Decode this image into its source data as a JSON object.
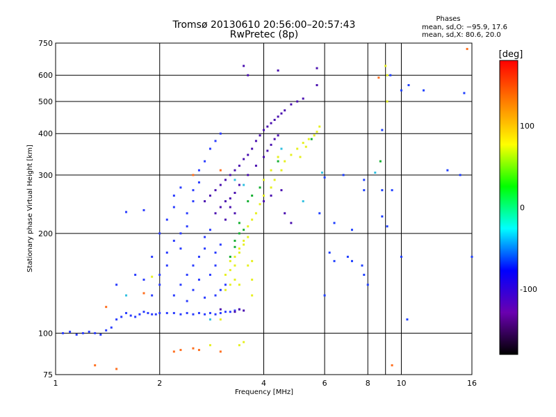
{
  "chart_data": {
    "type": "scatter",
    "title": "Tromsø 20130610 20:56:00–20:57:43",
    "subtitle": "RwPretec (8p)",
    "stats": {
      "heading": "Phases",
      "line1": "mean, sd,O: −95.9, 17.6",
      "line2": "mean, sd,X:  80.6, 20.0"
    },
    "xlabel": "Frequency [MHz]",
    "ylabel": "Stationary phase Virtual Height [km]",
    "x_scale": "log",
    "y_scale": "log",
    "xlim": [
      1,
      16
    ],
    "ylim": [
      75,
      750
    ],
    "x_ticks": [
      1,
      2,
      4,
      6,
      8,
      10,
      16
    ],
    "y_ticks": [
      75,
      100,
      200,
      300,
      400,
      500,
      600,
      750
    ],
    "grid": true,
    "colorbar": {
      "label": "[deg]",
      "range": [
        -180,
        180
      ],
      "ticks": [
        100,
        0,
        -100
      ],
      "colors": [
        "#ff0000",
        "#ff8000",
        "#ffff00",
        "#00ff00",
        "#00ffff",
        "#0000ff",
        "#6a00b0",
        "#000000"
      ]
    },
    "series": [
      {
        "color": "#2a3cff",
        "points": [
          [
            1.05,
            100
          ],
          [
            1.1,
            101
          ],
          [
            1.15,
            99
          ],
          [
            1.2,
            100
          ],
          [
            1.25,
            101
          ],
          [
            1.3,
            100
          ],
          [
            1.35,
            99
          ],
          [
            1.4,
            102
          ],
          [
            1.45,
            104
          ],
          [
            1.5,
            110
          ],
          [
            1.55,
            112
          ],
          [
            1.6,
            115
          ],
          [
            1.65,
            113
          ],
          [
            1.7,
            112
          ],
          [
            1.75,
            114
          ],
          [
            1.8,
            116
          ],
          [
            1.85,
            115
          ],
          [
            1.9,
            114
          ],
          [
            1.95,
            114
          ],
          [
            2.0,
            115
          ],
          [
            2.1,
            115
          ],
          [
            2.2,
            115
          ],
          [
            2.3,
            114
          ],
          [
            2.4,
            115
          ],
          [
            2.5,
            114
          ],
          [
            2.6,
            115
          ],
          [
            2.7,
            114
          ],
          [
            2.8,
            115
          ],
          [
            2.9,
            114
          ],
          [
            3.0,
            115
          ],
          [
            3.1,
            116
          ],
          [
            3.2,
            116
          ],
          [
            3.3,
            117
          ],
          [
            3.4,
            118
          ],
          [
            1.9,
            130
          ],
          [
            2.0,
            140
          ],
          [
            2.0,
            150
          ],
          [
            2.1,
            160
          ],
          [
            2.1,
            175
          ],
          [
            2.2,
            190
          ],
          [
            2.0,
            200
          ],
          [
            2.1,
            220
          ],
          [
            2.2,
            240
          ],
          [
            2.3,
            180
          ],
          [
            2.3,
            200
          ],
          [
            2.4,
            210
          ],
          [
            2.4,
            230
          ],
          [
            2.5,
            250
          ],
          [
            2.5,
            270
          ],
          [
            2.6,
            285
          ],
          [
            2.2,
            130
          ],
          [
            2.3,
            140
          ],
          [
            2.4,
            150
          ],
          [
            2.5,
            160
          ],
          [
            2.6,
            170
          ],
          [
            2.7,
            180
          ],
          [
            2.7,
            195
          ],
          [
            2.8,
            205
          ],
          [
            2.5,
            135
          ],
          [
            2.6,
            145
          ],
          [
            2.8,
            150
          ],
          [
            2.9,
            160
          ],
          [
            2.9,
            175
          ],
          [
            3.0,
            185
          ],
          [
            2.4,
            125
          ],
          [
            2.7,
            128
          ],
          [
            2.9,
            130
          ],
          [
            3.0,
            135
          ],
          [
            3.1,
            140
          ],
          [
            2.6,
            310
          ],
          [
            2.7,
            330
          ],
          [
            2.8,
            360
          ],
          [
            2.9,
            380
          ],
          [
            3.0,
            400
          ],
          [
            2.2,
            260
          ],
          [
            2.3,
            275
          ],
          [
            1.8,
            235
          ],
          [
            1.6,
            232
          ],
          [
            1.5,
            140
          ],
          [
            1.7,
            150
          ],
          [
            1.8,
            145
          ],
          [
            1.9,
            170
          ]
        ]
      },
      {
        "color": "#4a10b0",
        "points": [
          [
            2.7,
            250
          ],
          [
            2.8,
            260
          ],
          [
            2.9,
            270
          ],
          [
            3.0,
            280
          ],
          [
            3.1,
            290
          ],
          [
            3.2,
            300
          ],
          [
            3.3,
            310
          ],
          [
            3.4,
            320
          ],
          [
            3.5,
            335
          ],
          [
            3.6,
            345
          ],
          [
            3.7,
            360
          ],
          [
            3.8,
            380
          ],
          [
            3.9,
            395
          ],
          [
            4.0,
            410
          ],
          [
            4.1,
            420
          ],
          [
            4.2,
            430
          ],
          [
            4.3,
            440
          ],
          [
            4.4,
            450
          ],
          [
            4.5,
            460
          ],
          [
            4.6,
            470
          ],
          [
            4.8,
            490
          ],
          [
            5.0,
            500
          ],
          [
            5.2,
            510
          ],
          [
            2.9,
            230
          ],
          [
            3.0,
            240
          ],
          [
            3.1,
            250
          ],
          [
            3.2,
            255
          ],
          [
            3.3,
            265
          ],
          [
            3.4,
            280
          ],
          [
            3.6,
            300
          ],
          [
            3.8,
            320
          ],
          [
            4.0,
            340
          ],
          [
            4.1,
            355
          ],
          [
            4.2,
            370
          ],
          [
            4.3,
            385
          ],
          [
            4.4,
            395
          ],
          [
            3.6,
            600
          ],
          [
            3.5,
            640
          ],
          [
            4.4,
            620
          ],
          [
            5.7,
            630
          ],
          [
            5.7,
            560
          ],
          [
            4.0,
            250
          ],
          [
            4.2,
            260
          ],
          [
            4.5,
            270
          ],
          [
            4.6,
            230
          ],
          [
            3.3,
            116
          ],
          [
            3.4,
            118
          ],
          [
            3.5,
            117
          ],
          [
            3.0,
            118
          ],
          [
            3.1,
            220
          ],
          [
            3.2,
            240
          ],
          [
            3.3,
            230
          ],
          [
            4.8,
            215
          ]
        ]
      },
      {
        "color": "#e6f020",
        "points": [
          [
            3.1,
            150
          ],
          [
            3.2,
            155
          ],
          [
            3.2,
            165
          ],
          [
            3.3,
            160
          ],
          [
            3.3,
            170
          ],
          [
            3.4,
            175
          ],
          [
            3.4,
            180
          ],
          [
            3.5,
            185
          ],
          [
            3.5,
            190
          ],
          [
            3.6,
            195
          ],
          [
            3.3,
            145
          ],
          [
            3.2,
            140
          ],
          [
            3.4,
            140
          ],
          [
            3.6,
            160
          ],
          [
            3.7,
            165
          ],
          [
            3.1,
            135
          ],
          [
            3.6,
            210
          ],
          [
            3.7,
            220
          ],
          [
            3.8,
            230
          ],
          [
            3.9,
            245
          ],
          [
            4.0,
            260
          ],
          [
            4.2,
            275
          ],
          [
            4.3,
            290
          ],
          [
            4.5,
            310
          ],
          [
            4.6,
            330
          ],
          [
            4.8,
            345
          ],
          [
            5.0,
            360
          ],
          [
            5.2,
            375
          ],
          [
            5.4,
            385
          ],
          [
            5.6,
            395
          ],
          [
            5.7,
            405
          ],
          [
            5.8,
            420
          ],
          [
            4.0,
            290
          ],
          [
            4.2,
            310
          ],
          [
            4.4,
            340
          ],
          [
            5.1,
            340
          ],
          [
            5.3,
            365
          ],
          [
            9.1,
            600
          ],
          [
            9.0,
            640
          ],
          [
            9.1,
            500
          ],
          [
            3.7,
            145
          ],
          [
            3.7,
            130
          ],
          [
            1.9,
            148
          ],
          [
            3.4,
            92
          ],
          [
            3.5,
            94
          ],
          [
            2.8,
            92
          ],
          [
            3.0,
            110
          ]
        ]
      },
      {
        "color": "#14b030",
        "points": [
          [
            3.2,
            170
          ],
          [
            3.3,
            190
          ],
          [
            3.4,
            200
          ],
          [
            3.5,
            205
          ],
          [
            3.6,
            250
          ],
          [
            3.7,
            260
          ],
          [
            3.9,
            275
          ],
          [
            4.4,
            330
          ],
          [
            5.5,
            385
          ],
          [
            3.4,
            215
          ],
          [
            8.7,
            330
          ],
          [
            3.3,
            182
          ]
        ]
      },
      {
        "color": "#30c0e0",
        "points": [
          [
            3.3,
            290
          ],
          [
            3.5,
            280
          ],
          [
            1.6,
            130
          ],
          [
            2.8,
            110
          ],
          [
            8.4,
            305
          ],
          [
            4.5,
            360
          ],
          [
            5.9,
            305
          ],
          [
            5.2,
            250
          ]
        ]
      },
      {
        "color": "#ff7020",
        "points": [
          [
            2.2,
            88
          ],
          [
            2.3,
            89
          ],
          [
            2.5,
            90
          ],
          [
            2.6,
            89
          ],
          [
            3.0,
            88
          ],
          [
            1.5,
            78
          ],
          [
            1.3,
            80
          ],
          [
            1.4,
            120
          ],
          [
            1.8,
            132
          ],
          [
            2.5,
            300
          ],
          [
            15.5,
            720
          ],
          [
            9.4,
            80
          ],
          [
            8.6,
            590
          ],
          [
            3.0,
            310
          ]
        ]
      },
      {
        "color": "#2040ff",
        "points": [
          [
            5.8,
            230
          ],
          [
            6.0,
            130
          ],
          [
            6.2,
            175
          ],
          [
            6.4,
            165
          ],
          [
            7.0,
            170
          ],
          [
            7.2,
            165
          ],
          [
            7.8,
            290
          ],
          [
            7.8,
            270
          ],
          [
            7.7,
            160
          ],
          [
            7.8,
            150
          ],
          [
            8.0,
            140
          ],
          [
            8.8,
            410
          ],
          [
            8.8,
            270
          ],
          [
            8.8,
            225
          ],
          [
            9.1,
            210
          ],
          [
            9.3,
            600
          ],
          [
            10.5,
            560
          ],
          [
            11.6,
            540
          ],
          [
            13.6,
            310
          ],
          [
            14.8,
            300
          ],
          [
            15.2,
            530
          ],
          [
            16.0,
            170
          ],
          [
            10.0,
            170
          ],
          [
            10.4,
            110
          ],
          [
            6.4,
            215
          ],
          [
            6.8,
            300
          ],
          [
            7.2,
            205
          ],
          [
            6.0,
            295
          ],
          [
            9.4,
            270
          ],
          [
            10.0,
            540
          ]
        ]
      }
    ]
  }
}
